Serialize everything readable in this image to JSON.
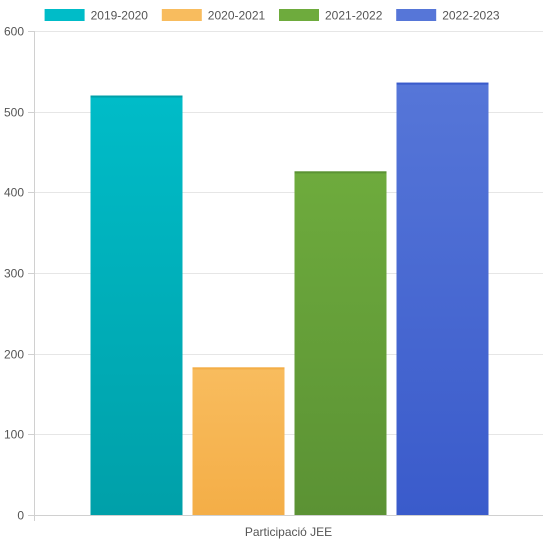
{
  "chart_data": {
    "type": "bar",
    "categories": [
      "Participació JEE"
    ],
    "series": [
      {
        "name": "2019-2020",
        "values": [
          520
        ],
        "color": "#00bcc8",
        "color_dark": "#00a0a9"
      },
      {
        "name": "2020-2021",
        "values": [
          183
        ],
        "color": "#f8bc5e",
        "color_dark": "#f4ae47"
      },
      {
        "name": "2021-2022",
        "values": [
          426
        ],
        "color": "#6eab3d",
        "color_dark": "#5b9234"
      },
      {
        "name": "2022-2023",
        "values": [
          536
        ],
        "color": "#5676d8",
        "color_dark": "#3a5bcb"
      }
    ],
    "ylim": [
      0,
      600
    ],
    "yticks": [
      0,
      100,
      200,
      300,
      400,
      500,
      600
    ],
    "grid": true,
    "legend_position": "top"
  }
}
